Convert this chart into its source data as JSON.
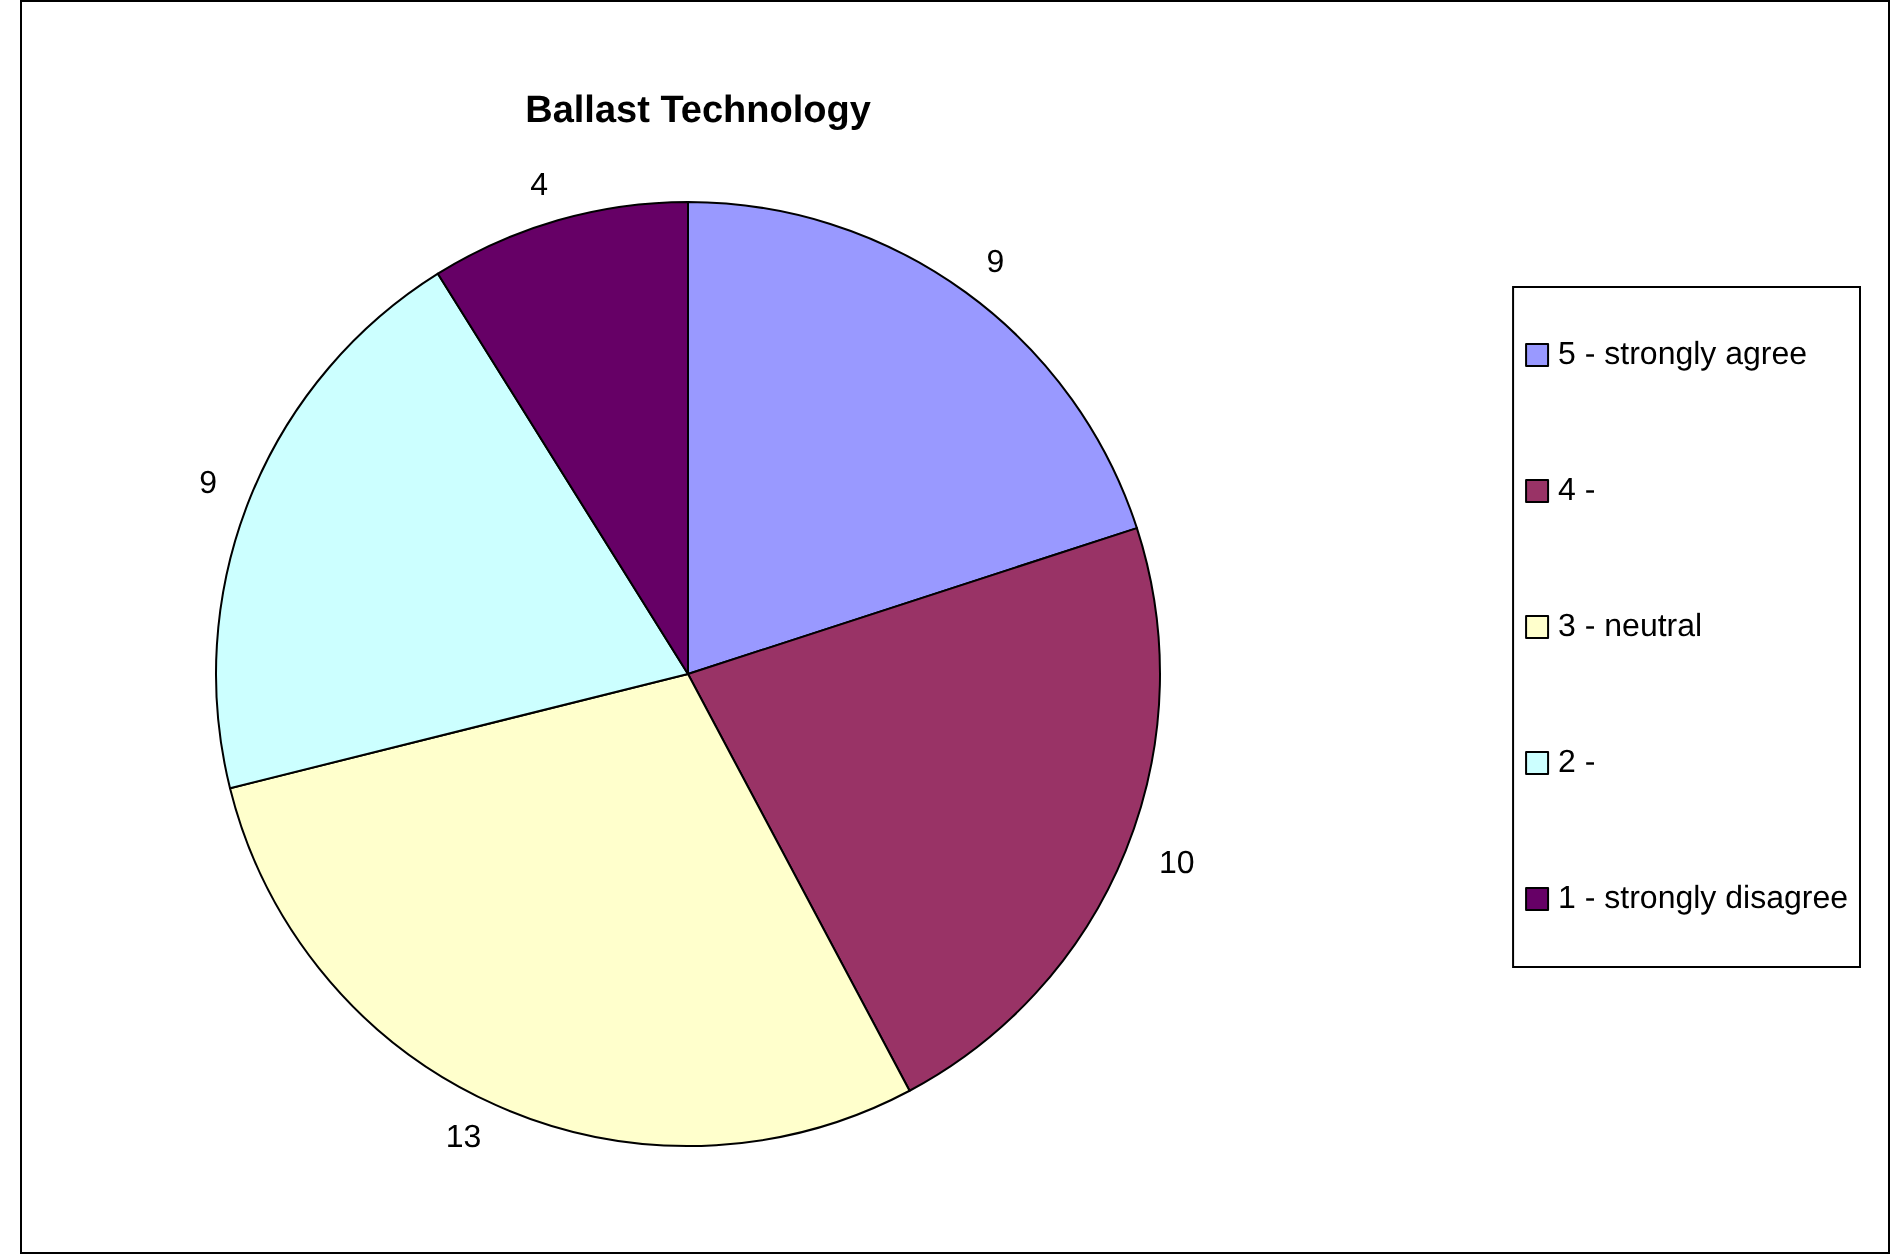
{
  "chart_data": {
    "type": "pie",
    "title": "Ballast Technology",
    "categories": [
      "5 - strongly agree",
      "4 -",
      "3 - neutral",
      "2 -",
      "1 - strongly disagree"
    ],
    "values": [
      9,
      10,
      13,
      9,
      4
    ],
    "colors": [
      "#9999ff",
      "#993366",
      "#ffffcc",
      "#ccffff",
      "#660066"
    ],
    "data_labels": true,
    "legend": "right"
  }
}
